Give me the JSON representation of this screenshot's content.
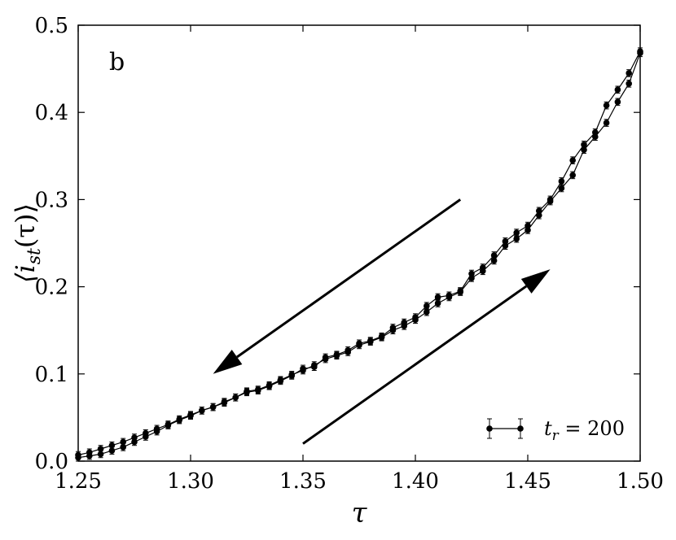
{
  "chart_data": {
    "type": "line",
    "panel_label": "b",
    "xlabel": "τ",
    "ylabel": "⟨i_st(τ)⟩",
    "xlim": [
      1.25,
      1.5
    ],
    "ylim": [
      0.0,
      0.5
    ],
    "x_ticks": [
      "1.25",
      "1.30",
      "1.35",
      "1.40",
      "1.45",
      "1.50"
    ],
    "y_ticks": [
      "0.0",
      "0.1",
      "0.2",
      "0.3",
      "0.4",
      "0.5"
    ],
    "grid": false,
    "legend": {
      "position": "bottom-right",
      "label": "t_r = 200"
    },
    "series": [
      {
        "name": "t_r = 200",
        "x": [
          1.25,
          1.255,
          1.26,
          1.265,
          1.27,
          1.275,
          1.28,
          1.285,
          1.29,
          1.295,
          1.3,
          1.305,
          1.31,
          1.315,
          1.32,
          1.325,
          1.33,
          1.335,
          1.34,
          1.345,
          1.35,
          1.355,
          1.36,
          1.365,
          1.37,
          1.375,
          1.38,
          1.385,
          1.39,
          1.395,
          1.4,
          1.405,
          1.41,
          1.415,
          1.42,
          1.425,
          1.43,
          1.435,
          1.44,
          1.445,
          1.45,
          1.455,
          1.46,
          1.465,
          1.47,
          1.475,
          1.48,
          1.485,
          1.49,
          1.495,
          1.5
        ],
        "y": [
          0.004,
          0.006,
          0.008,
          0.012,
          0.016,
          0.022,
          0.028,
          0.034,
          0.041,
          0.047,
          0.052,
          0.058,
          0.062,
          0.068,
          0.073,
          0.08,
          0.082,
          0.087,
          0.093,
          0.099,
          0.104,
          0.11,
          0.117,
          0.121,
          0.125,
          0.133,
          0.137,
          0.142,
          0.15,
          0.155,
          0.162,
          0.171,
          0.181,
          0.188,
          0.194,
          0.21,
          0.218,
          0.23,
          0.247,
          0.255,
          0.265,
          0.282,
          0.298,
          0.313,
          0.328,
          0.357,
          0.372,
          0.388,
          0.412,
          0.433,
          0.468
        ]
      },
      {
        "name": "t_r = 200",
        "x": [
          1.25,
          1.255,
          1.26,
          1.265,
          1.27,
          1.275,
          1.28,
          1.285,
          1.29,
          1.295,
          1.3,
          1.305,
          1.31,
          1.315,
          1.32,
          1.325,
          1.33,
          1.335,
          1.34,
          1.345,
          1.35,
          1.355,
          1.36,
          1.365,
          1.37,
          1.375,
          1.38,
          1.385,
          1.39,
          1.395,
          1.4,
          1.405,
          1.41,
          1.415,
          1.42,
          1.425,
          1.43,
          1.435,
          1.44,
          1.445,
          1.45,
          1.455,
          1.46,
          1.465,
          1.47,
          1.475,
          1.48,
          1.485,
          1.49,
          1.495,
          1.5
        ],
        "y": [
          0.007,
          0.01,
          0.014,
          0.018,
          0.022,
          0.027,
          0.032,
          0.037,
          0.042,
          0.048,
          0.053,
          0.058,
          0.062,
          0.067,
          0.073,
          0.079,
          0.081,
          0.086,
          0.092,
          0.098,
          0.106,
          0.108,
          0.119,
          0.122,
          0.127,
          0.135,
          0.138,
          0.143,
          0.153,
          0.159,
          0.165,
          0.178,
          0.188,
          0.19,
          0.195,
          0.215,
          0.222,
          0.236,
          0.252,
          0.262,
          0.27,
          0.287,
          0.3,
          0.321,
          0.345,
          0.363,
          0.377,
          0.408,
          0.426,
          0.445,
          0.47
        ]
      }
    ],
    "error_bar": 0.004,
    "annotations": [
      {
        "type": "arrow",
        "from": [
          1.42,
          0.3
        ],
        "to": [
          1.31,
          0.1
        ]
      },
      {
        "type": "arrow",
        "from": [
          1.35,
          0.02
        ],
        "to": [
          1.46,
          0.22
        ]
      }
    ]
  }
}
